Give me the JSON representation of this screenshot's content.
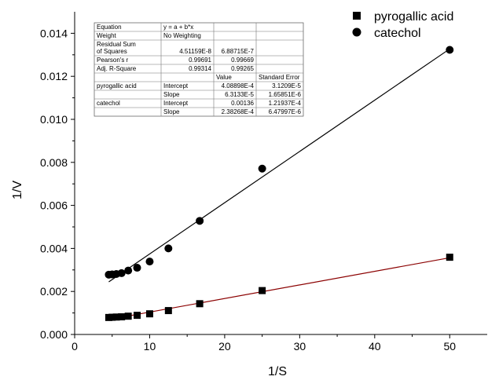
{
  "chart_data": {
    "type": "scatter",
    "xlabel": "1/S",
    "ylabel": "1/V",
    "xlim": [
      0,
      55
    ],
    "ylim": [
      0,
      0.015
    ],
    "x_ticks": [
      "0",
      "10",
      "20",
      "30",
      "40",
      "50"
    ],
    "y_ticks": [
      "0.000",
      "0.002",
      "0.004",
      "0.006",
      "0.008",
      "0.010",
      "0.012",
      "0.014"
    ],
    "legend_position": "top-right",
    "series": [
      {
        "name": "pyrogallic acid",
        "marker": "square",
        "color": "#000000",
        "x": [
          4.55,
          5.0,
          5.56,
          6.25,
          7.14,
          8.33,
          10.0,
          12.5,
          16.67,
          25.0,
          50.0
        ],
        "y": [
          0.00079,
          0.0008,
          0.00081,
          0.00082,
          0.00085,
          0.00089,
          0.00096,
          0.00111,
          0.00143,
          0.00204,
          0.00359
        ],
        "fit": {
          "intercept": 0.000408898,
          "slope": 6.3133e-05,
          "line_color": "#8b0000"
        }
      },
      {
        "name": "catechol",
        "marker": "circle",
        "color": "#000000",
        "x": [
          4.55,
          5.0,
          5.56,
          6.25,
          7.14,
          8.33,
          10.0,
          12.5,
          16.67,
          25.0,
          50.0
        ],
        "y": [
          0.00278,
          0.00279,
          0.00281,
          0.00285,
          0.00297,
          0.0031,
          0.00339,
          0.004,
          0.00528,
          0.00771,
          0.01323
        ],
        "fit": {
          "intercept": 0.00136,
          "slope": 0.000238268,
          "line_color": "#000000"
        }
      }
    ]
  },
  "fit_table": {
    "rows": [
      [
        "Equation",
        "y = a + b*x",
        "",
        ""
      ],
      [
        "Weight",
        "No Weighting",
        "",
        ""
      ],
      [
        "Residual Sum\nof Squares",
        "4.51159E-8",
        "6.88715E-7",
        ""
      ],
      [
        "Pearson's r",
        "0.99691",
        "0.99669",
        ""
      ],
      [
        "Adj. R-Square",
        "0.99314",
        "0.99265",
        ""
      ],
      [
        "",
        "",
        "Value",
        "Standard Error"
      ],
      [
        "pyrogallic acid",
        "Intercept",
        "4.08898E-4",
        "3.1209E-5"
      ],
      [
        "",
        "Slope",
        "6.3133E-5",
        "1.65851E-6"
      ],
      [
        "catechol",
        "Intercept",
        "0.00136",
        "1.21937E-4"
      ],
      [
        "",
        "Slope",
        "2.38268E-4",
        "6.47997E-6"
      ]
    ]
  }
}
